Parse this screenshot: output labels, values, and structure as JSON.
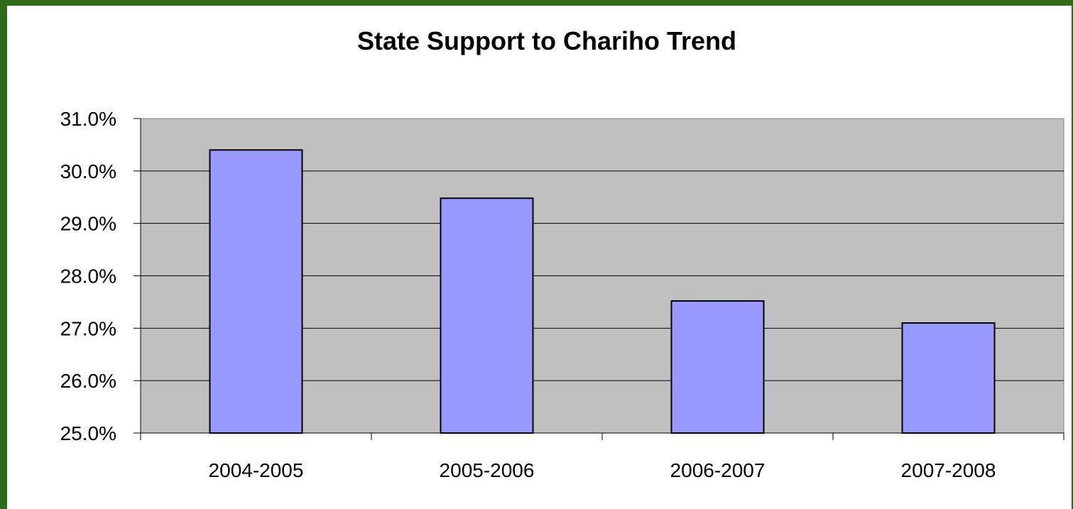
{
  "chart_data": {
    "type": "bar",
    "title": "State Support to Chariho Trend",
    "xlabel": "",
    "ylabel": "",
    "categories": [
      "2004-2005",
      "2005-2006",
      "2006-2007",
      "2007-2008"
    ],
    "values": [
      30.4,
      29.48,
      27.52,
      27.1
    ],
    "ylim": [
      25.0,
      31.0
    ],
    "yticks": [
      25.0,
      26.0,
      27.0,
      28.0,
      29.0,
      30.0,
      31.0
    ],
    "ytick_labels": [
      "25.0%",
      "26.0%",
      "27.0%",
      "28.0%",
      "29.0%",
      "30.0%",
      "31.0%"
    ],
    "grid": true,
    "legend": "none",
    "colors": {
      "bar": "#9999ff",
      "plot_background": "#c0c0c0",
      "frame": "#2e6b1a"
    }
  }
}
